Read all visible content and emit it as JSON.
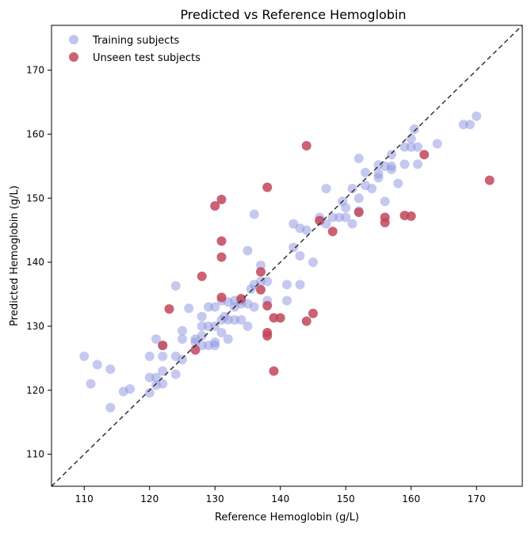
{
  "chart_data": {
    "type": "scatter",
    "title": "Predicted vs Reference Hemoglobin",
    "xlabel": "Reference Hemoglobin (g/L)",
    "ylabel": "Predicted Hemoglobin (g/L)",
    "xlim": [
      105,
      177
    ],
    "ylim": [
      105,
      177
    ],
    "xticks": [
      "110",
      "120",
      "130",
      "140",
      "150",
      "160",
      "170"
    ],
    "yticks": [
      "110",
      "120",
      "130",
      "140",
      "150",
      "160",
      "170"
    ],
    "grid": false,
    "legend_position": "top-left",
    "identity_line": true,
    "series": [
      {
        "name": "Training subjects",
        "color": "#8c93e0",
        "points": [
          [
            110.0,
            125.3
          ],
          [
            111.0,
            121.0
          ],
          [
            112.0,
            124.0
          ],
          [
            114.0,
            123.3
          ],
          [
            114.0,
            117.3
          ],
          [
            116.0,
            119.8
          ],
          [
            117.0,
            120.2
          ],
          [
            120.0,
            125.3
          ],
          [
            120.0,
            122.0
          ],
          [
            120.0,
            119.6
          ],
          [
            121.0,
            128.0
          ],
          [
            121.0,
            122.0
          ],
          [
            121.0,
            120.8
          ],
          [
            122.0,
            127.0
          ],
          [
            122.0,
            125.3
          ],
          [
            122.0,
            123.0
          ],
          [
            122.0,
            121.0
          ],
          [
            124.0,
            136.3
          ],
          [
            124.0,
            125.3
          ],
          [
            124.0,
            122.5
          ],
          [
            125.0,
            129.3
          ],
          [
            125.0,
            128.0
          ],
          [
            125.0,
            124.8
          ],
          [
            126.0,
            132.8
          ],
          [
            127.0,
            128.0
          ],
          [
            127.0,
            127.5
          ],
          [
            128.0,
            131.5
          ],
          [
            128.0,
            130.0
          ],
          [
            128.0,
            128.5
          ],
          [
            128.0,
            127.0
          ],
          [
            129.0,
            133.0
          ],
          [
            129.0,
            130.0
          ],
          [
            129.0,
            127.0
          ],
          [
            130.0,
            133.0
          ],
          [
            130.0,
            130.0
          ],
          [
            130.0,
            127.5
          ],
          [
            130.0,
            127.0
          ],
          [
            131.0,
            134.0
          ],
          [
            131.0,
            131.0
          ],
          [
            131.0,
            129.0
          ],
          [
            131.5,
            131.5
          ],
          [
            132.0,
            133.8
          ],
          [
            132.0,
            131.0
          ],
          [
            132.0,
            128.0
          ],
          [
            133.0,
            134.0
          ],
          [
            133.0,
            133.0
          ],
          [
            133.0,
            131.0
          ],
          [
            134.0,
            134.0
          ],
          [
            134.0,
            133.5
          ],
          [
            134.0,
            131.0
          ],
          [
            135.0,
            141.8
          ],
          [
            135.0,
            133.5
          ],
          [
            135.0,
            130.0
          ],
          [
            135.5,
            135.8
          ],
          [
            136.0,
            147.5
          ],
          [
            136.0,
            136.5
          ],
          [
            136.0,
            133.0
          ],
          [
            137.0,
            139.5
          ],
          [
            137.0,
            137.0
          ],
          [
            138.0,
            137.0
          ],
          [
            138.0,
            134.0
          ],
          [
            141.0,
            136.5
          ],
          [
            141.0,
            134.0
          ],
          [
            142.0,
            146.0
          ],
          [
            142.0,
            142.3
          ],
          [
            143.0,
            145.3
          ],
          [
            143.0,
            141.0
          ],
          [
            143.0,
            136.5
          ],
          [
            144.0,
            145.0
          ],
          [
            145.0,
            140.0
          ],
          [
            146.0,
            147.0
          ],
          [
            147.0,
            151.5
          ],
          [
            147.0,
            146.0
          ],
          [
            148.0,
            147.0
          ],
          [
            149.0,
            147.0
          ],
          [
            149.5,
            149.5
          ],
          [
            150.0,
            148.5
          ],
          [
            150.0,
            147.0
          ],
          [
            151.0,
            151.5
          ],
          [
            151.0,
            146.0
          ],
          [
            152.0,
            156.2
          ],
          [
            152.0,
            150.0
          ],
          [
            152.0,
            148.0
          ],
          [
            153.0,
            154.0
          ],
          [
            153.0,
            152.0
          ],
          [
            154.0,
            151.5
          ],
          [
            155.0,
            155.2
          ],
          [
            155.0,
            153.8
          ],
          [
            155.0,
            153.2
          ],
          [
            156.0,
            149.5
          ],
          [
            156.0,
            155.0
          ],
          [
            157.0,
            156.8
          ],
          [
            157.0,
            155.0
          ],
          [
            157.0,
            154.5
          ],
          [
            158.0,
            152.3
          ],
          [
            159.0,
            158.0
          ],
          [
            159.0,
            155.3
          ],
          [
            160.0,
            159.3
          ],
          [
            160.0,
            158.0
          ],
          [
            160.5,
            160.8
          ],
          [
            161.0,
            158.0
          ],
          [
            161.0,
            155.3
          ],
          [
            164.0,
            158.5
          ],
          [
            168.0,
            161.5
          ],
          [
            169.0,
            161.5
          ],
          [
            170.0,
            162.8
          ]
        ]
      },
      {
        "name": "Unseen test subjects",
        "color": "#c2475c",
        "points": [
          [
            122.0,
            127.0
          ],
          [
            123.0,
            132.7
          ],
          [
            127.0,
            126.3
          ],
          [
            128.0,
            137.8
          ],
          [
            130.0,
            148.8
          ],
          [
            131.0,
            149.8
          ],
          [
            131.0,
            143.3
          ],
          [
            131.0,
            140.8
          ],
          [
            131.0,
            134.5
          ],
          [
            134.0,
            134.3
          ],
          [
            137.0,
            138.5
          ],
          [
            137.0,
            135.7
          ],
          [
            138.0,
            151.7
          ],
          [
            138.0,
            133.2
          ],
          [
            138.0,
            129.0
          ],
          [
            138.0,
            128.5
          ],
          [
            139.0,
            131.3
          ],
          [
            139.0,
            123.0
          ],
          [
            140.0,
            131.3
          ],
          [
            144.0,
            158.2
          ],
          [
            144.0,
            130.8
          ],
          [
            145.0,
            132.0
          ],
          [
            146.0,
            146.5
          ],
          [
            148.0,
            144.8
          ],
          [
            152.0,
            147.8
          ],
          [
            156.0,
            147.0
          ],
          [
            156.0,
            146.2
          ],
          [
            159.0,
            147.3
          ],
          [
            160.0,
            147.2
          ],
          [
            162.0,
            156.8
          ],
          [
            172.0,
            152.8
          ]
        ]
      }
    ]
  }
}
